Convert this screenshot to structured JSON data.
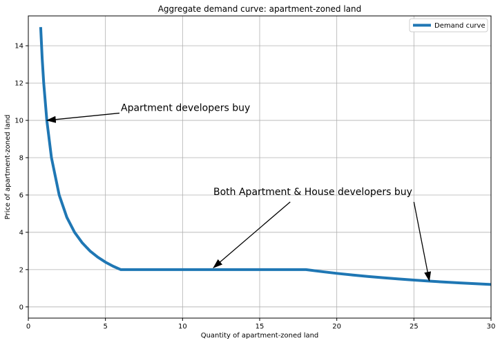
{
  "chart_data": {
    "type": "line",
    "title": "Aggregate demand curve: apartment-zoned land",
    "xlabel": "Quantity of apartment-zoned land",
    "ylabel": "Price of apartment-zoned land",
    "xlim": [
      0,
      30
    ],
    "ylim": [
      -0.6,
      15.6
    ],
    "xticks": [
      0,
      5,
      10,
      15,
      20,
      25,
      30
    ],
    "xtick_labels": [
      "0",
      "5",
      "10",
      "15",
      "20",
      "25",
      "30"
    ],
    "yticks": [
      0,
      2,
      4,
      6,
      8,
      10,
      12,
      14
    ],
    "ytick_labels": [
      "0",
      "2",
      "4",
      "6",
      "8",
      "10",
      "12",
      "14"
    ],
    "grid": true,
    "legend_position": "top-right",
    "series": [
      {
        "name": "Demand curve",
        "color": "#1f77b4",
        "x": [
          0.8,
          0.9,
          1.0,
          1.2,
          1.5,
          2.0,
          2.5,
          3.0,
          3.5,
          4.0,
          4.5,
          5.0,
          5.5,
          6.0,
          8.0,
          10.0,
          12.0,
          14.0,
          16.0,
          18.0,
          19.0,
          20.0,
          21.0,
          22.0,
          23.0,
          24.0,
          25.0,
          26.0,
          27.0,
          28.0,
          29.0,
          30.0
        ],
        "y": [
          15.0,
          13.3,
          12.0,
          10.0,
          8.0,
          6.0,
          4.8,
          4.0,
          3.43,
          3.0,
          2.67,
          2.4,
          2.18,
          2.0,
          2.0,
          2.0,
          2.0,
          2.0,
          2.0,
          2.0,
          1.895,
          1.8,
          1.714,
          1.636,
          1.565,
          1.5,
          1.44,
          1.385,
          1.333,
          1.286,
          1.241,
          1.2
        ]
      }
    ],
    "annotations": [
      {
        "text": "Apartment developers buy",
        "text_at": [
          6,
          10.5
        ],
        "arrow_to": [
          1.2,
          10
        ]
      },
      {
        "text": "Both Apartment & House developers buy",
        "text_at": [
          12,
          6
        ],
        "arrow_to": [
          12,
          2.1
        ]
      },
      {
        "text": "",
        "text_at": [
          25,
          6
        ],
        "arrow_to": [
          26,
          1.4
        ]
      }
    ]
  }
}
